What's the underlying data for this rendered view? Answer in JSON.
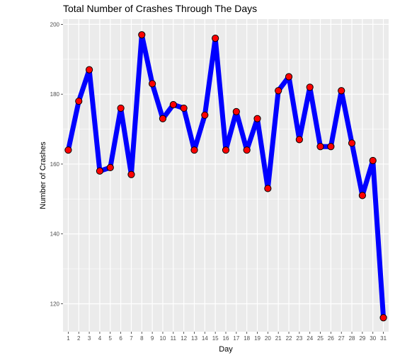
{
  "chart_data": {
    "type": "line",
    "title": "Total Number of Crashes Through The Days",
    "xlabel": "Day",
    "ylabel": "Number of Crashes",
    "x": [
      1,
      2,
      3,
      4,
      5,
      6,
      7,
      8,
      9,
      10,
      11,
      12,
      13,
      14,
      15,
      16,
      17,
      18,
      19,
      20,
      21,
      22,
      23,
      24,
      25,
      26,
      27,
      28,
      29,
      30,
      31
    ],
    "x_tick_labels": [
      "1",
      "2",
      "3",
      "4",
      "5",
      "6",
      "7",
      "8",
      "9",
      "10",
      "11",
      "12",
      "13",
      "14",
      "15",
      "16",
      "17",
      "18",
      "19",
      "20",
      "21",
      "22",
      "23",
      "24",
      "25",
      "26",
      "27",
      "28",
      "29",
      "30",
      "31"
    ],
    "y_ticks": [
      120,
      140,
      160,
      180,
      200
    ],
    "y_tick_labels": [
      "120",
      "140",
      "160",
      "180",
      "200"
    ],
    "xlim": [
      0.5,
      31.5
    ],
    "ylim": [
      112,
      201.5
    ],
    "grid": true,
    "series": [
      {
        "values": [
          164,
          178,
          187,
          158,
          159,
          176,
          157,
          197,
          183,
          173,
          177,
          176,
          164,
          174,
          196,
          164,
          175,
          164,
          173,
          153,
          181,
          185,
          167,
          182,
          165,
          165,
          181,
          166,
          151,
          161,
          116
        ],
        "line_color": "#0000ff",
        "marker_fill": "#ff0000",
        "marker_edge": "#000000"
      }
    ],
    "panel_color": "#ebebeb",
    "grid_color": "#ffffff"
  }
}
